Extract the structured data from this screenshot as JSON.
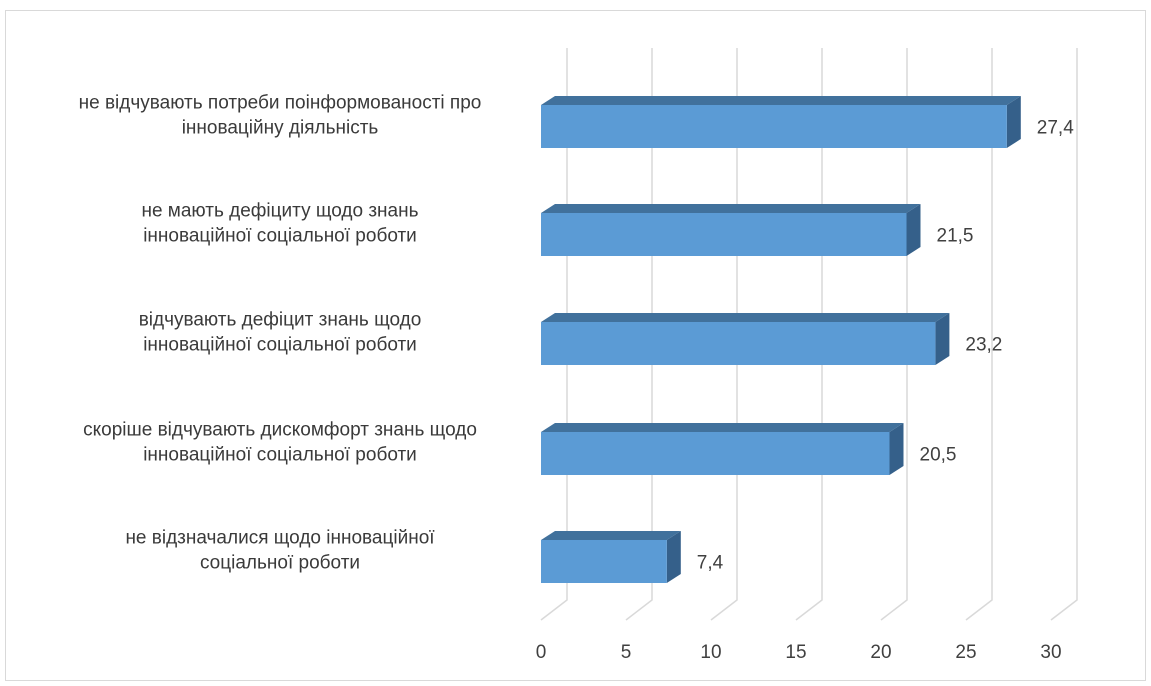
{
  "chart_data": {
    "type": "bar",
    "orientation": "horizontal",
    "style": "3d",
    "categories": [
      [
        "не відчувають потреби поінформованості про",
        "інноваційну діяльність"
      ],
      [
        "не мають дефіциту щодо знань",
        "інноваційної соціальної роботи"
      ],
      [
        "відчувають дефіцит знань щодо",
        "інноваційної соціальної роботи"
      ],
      [
        "скоріше відчувають дискомфорт знань щодо",
        "інноваційної соціальної роботи"
      ],
      [
        "не відзначалися щодо інноваційної",
        "соціальної роботи"
      ]
    ],
    "values": [
      27.4,
      21.5,
      23.2,
      20.5,
      7.4
    ],
    "value_labels": [
      "27,4",
      "21,5",
      "23,2",
      "20,5",
      "7,4"
    ],
    "xlim": [
      0,
      30
    ],
    "xticks": [
      "0",
      "5",
      "10",
      "15",
      "20",
      "25",
      "30"
    ],
    "grid": true,
    "colors": {
      "bar_front": "#5b9bd5",
      "bar_top": "#41719c",
      "bar_side": "#35608a",
      "grid": "#d9d9d9"
    }
  }
}
